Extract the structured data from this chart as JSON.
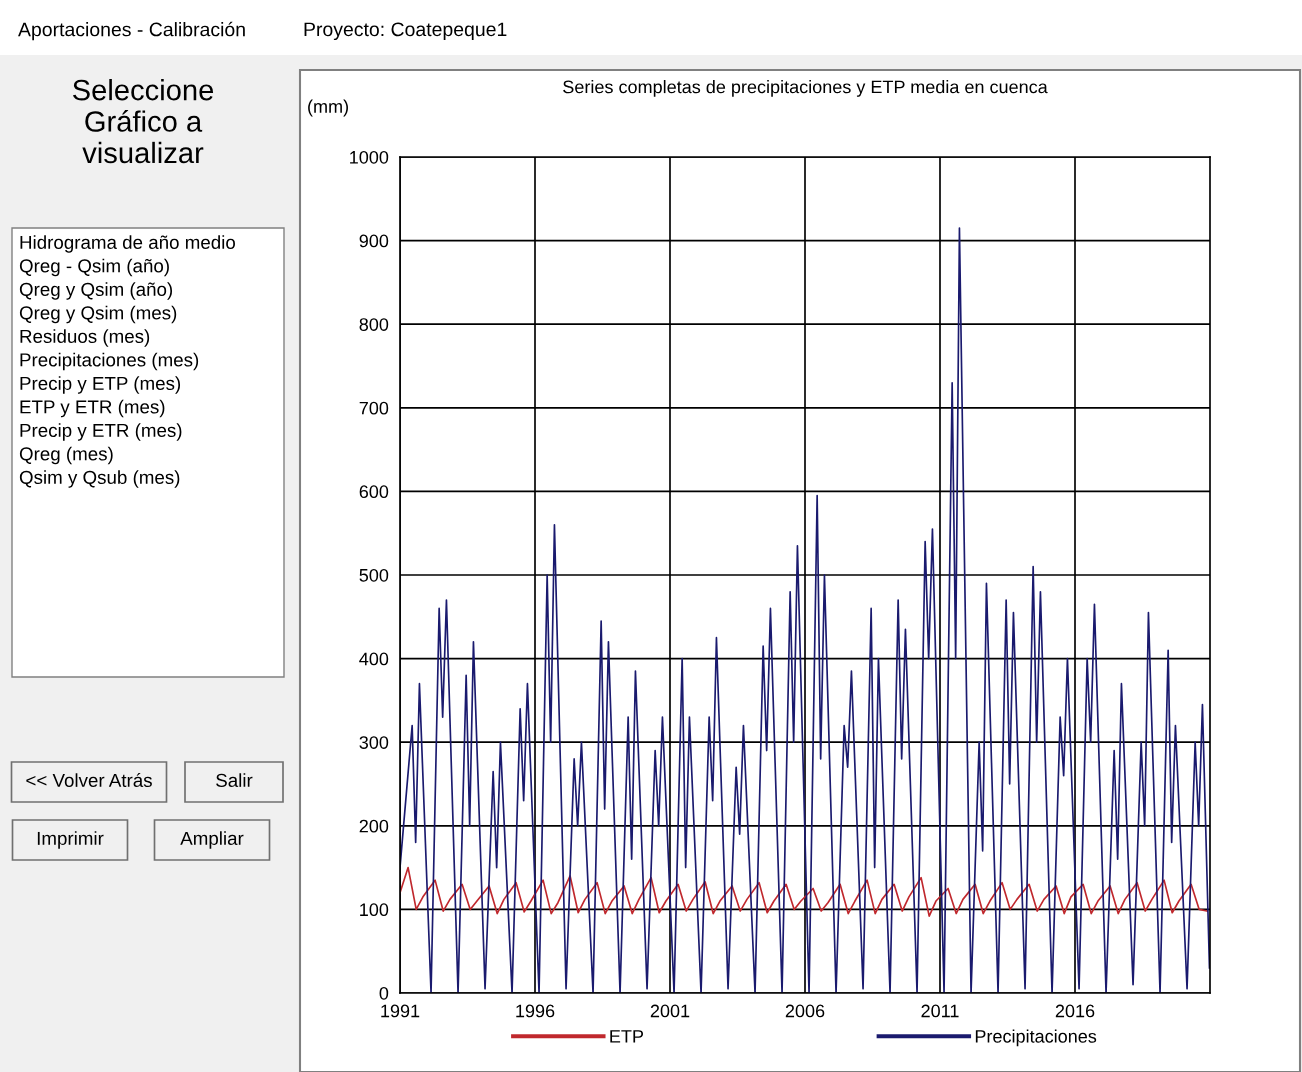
{
  "chart_data": {
    "type": "line",
    "title": "Series completas de precipitaciones y ETP media en cuenca",
    "ylabel": "(mm)",
    "annotations": [
      "Aportaciones - Calibración",
      "Proyecto: Coatepeque1",
      "Seleccione\nGráfico a\nvisualizar",
      "Hidrograma de año medio",
      "Qreg - Qsim (año)",
      "Qreg y Qsim (año)",
      "Qreg y Qsim (mes)",
      "Residuos (mes)",
      "Precipitaciones (mes)",
      "Precip y ETP (mes)",
      "ETP y ETR (mes)",
      "Precip y ETR (mes)",
      "Qreg (mes)",
      "Qsim y Qsub (mes)",
      "<< Volver Atrás",
      "Salir",
      "Imprimir",
      "Ampliar"
    ],
    "xlim": [
      1991,
      2021
    ],
    "xticks": [
      1991,
      1996,
      2001,
      2006,
      2011,
      2016
    ],
    "ylim": [
      0,
      1000
    ],
    "yticks": [
      0,
      100,
      200,
      300,
      400,
      500,
      600,
      700,
      800,
      900,
      1000
    ],
    "grid": true,
    "legend": "bottom",
    "series": [
      {
        "name": "ETP",
        "color": "#c0282d",
        "x": [
          1991.0,
          1991.3,
          1991.6,
          1991.85,
          1992.3,
          1992.6,
          1992.85,
          1993.3,
          1993.6,
          1993.85,
          1994.3,
          1994.6,
          1994.85,
          1995.3,
          1995.6,
          1995.85,
          1996.3,
          1996.6,
          1996.85,
          1997.3,
          1997.6,
          1997.85,
          1998.3,
          1998.6,
          1998.85,
          1999.3,
          1999.6,
          1999.85,
          2000.3,
          2000.6,
          2000.85,
          2001.3,
          2001.6,
          2001.85,
          2002.3,
          2002.6,
          2002.85,
          2003.3,
          2003.6,
          2003.85,
          2004.3,
          2004.6,
          2004.85,
          2005.3,
          2005.6,
          2005.85,
          2006.3,
          2006.6,
          2006.85,
          2007.3,
          2007.6,
          2007.85,
          2008.3,
          2008.6,
          2008.85,
          2009.3,
          2009.6,
          2009.85,
          2010.3,
          2010.6,
          2010.85,
          2011.3,
          2011.6,
          2011.85,
          2012.3,
          2012.6,
          2012.85,
          2013.3,
          2013.6,
          2013.85,
          2014.3,
          2014.6,
          2014.85,
          2015.3,
          2015.6,
          2015.85,
          2016.3,
          2016.6,
          2016.85,
          2017.3,
          2017.6,
          2017.85,
          2018.3,
          2018.6,
          2018.85,
          2019.3,
          2019.6,
          2019.85,
          2020.3,
          2020.6,
          2020.9
        ],
        "values": [
          120,
          150,
          100,
          115,
          135,
          98,
          112,
          130,
          100,
          110,
          128,
          95,
          112,
          132,
          97,
          110,
          135,
          95,
          108,
          140,
          96,
          112,
          132,
          95,
          110,
          128,
          95,
          112,
          138,
          96,
          110,
          130,
          98,
          112,
          133,
          95,
          110,
          128,
          98,
          112,
          132,
          96,
          110,
          130,
          100,
          110,
          125,
          98,
          108,
          130,
          95,
          110,
          135,
          95,
          112,
          130,
          98,
          115,
          138,
          92,
          110,
          125,
          95,
          112,
          130,
          95,
          110,
          132,
          100,
          112,
          130,
          98,
          112,
          128,
          95,
          115,
          130,
          95,
          110,
          128,
          95,
          112,
          132,
          98,
          112,
          135,
          96,
          110,
          130,
          100,
          98
        ]
      },
      {
        "name": "Precipitaciones",
        "color": "#1a1a6e",
        "x": [
          1991.0,
          1991.45,
          1991.58,
          1991.72,
          1992.15,
          1992.45,
          1992.58,
          1992.72,
          1993.15,
          1993.45,
          1993.58,
          1993.72,
          1994.15,
          1994.45,
          1994.58,
          1994.72,
          1995.15,
          1995.45,
          1995.58,
          1995.72,
          1996.15,
          1996.45,
          1996.58,
          1996.72,
          1997.15,
          1997.45,
          1997.58,
          1997.72,
          1998.15,
          1998.45,
          1998.58,
          1998.72,
          1999.15,
          1999.45,
          1999.58,
          1999.72,
          2000.15,
          2000.45,
          2000.58,
          2000.72,
          2001.15,
          2001.45,
          2001.58,
          2001.72,
          2002.15,
          2002.45,
          2002.58,
          2002.72,
          2003.15,
          2003.45,
          2003.58,
          2003.72,
          2004.15,
          2004.45,
          2004.58,
          2004.72,
          2005.15,
          2005.45,
          2005.58,
          2005.72,
          2006.15,
          2006.45,
          2006.58,
          2006.72,
          2007.15,
          2007.45,
          2007.58,
          2007.72,
          2008.15,
          2008.45,
          2008.58,
          2008.72,
          2009.15,
          2009.45,
          2009.58,
          2009.72,
          2010.15,
          2010.45,
          2010.58,
          2010.72,
          2011.15,
          2011.45,
          2011.58,
          2011.72,
          2012.15,
          2012.45,
          2012.58,
          2012.72,
          2013.15,
          2013.45,
          2013.58,
          2013.72,
          2014.15,
          2014.45,
          2014.58,
          2014.72,
          2015.15,
          2015.45,
          2015.58,
          2015.72,
          2016.15,
          2016.45,
          2016.58,
          2016.72,
          2017.15,
          2017.45,
          2017.58,
          2017.72,
          2018.15,
          2018.45,
          2018.58,
          2018.72,
          2019.15,
          2019.45,
          2019.58,
          2019.72,
          2020.15,
          2020.45,
          2020.58,
          2020.72,
          2020.98
        ],
        "values": [
          150,
          320,
          180,
          370,
          0,
          460,
          330,
          470,
          0,
          380,
          200,
          420,
          5,
          265,
          150,
          300,
          0,
          340,
          230,
          370,
          0,
          500,
          300,
          560,
          5,
          280,
          200,
          300,
          0,
          445,
          220,
          420,
          0,
          330,
          160,
          385,
          5,
          290,
          200,
          330,
          0,
          400,
          150,
          330,
          0,
          330,
          230,
          425,
          5,
          270,
          190,
          320,
          0,
          415,
          290,
          460,
          0,
          480,
          300,
          535,
          0,
          595,
          280,
          500,
          0,
          320,
          270,
          385,
          5,
          460,
          150,
          400,
          0,
          470,
          280,
          435,
          0,
          540,
          400,
          555,
          0,
          730,
          400,
          915,
          0,
          300,
          170,
          490,
          0,
          470,
          250,
          455,
          5,
          510,
          300,
          480,
          0,
          330,
          260,
          400,
          5,
          400,
          300,
          465,
          0,
          290,
          160,
          370,
          10,
          300,
          200,
          455,
          0,
          410,
          180,
          320,
          5,
          300,
          200,
          345,
          30
        ]
      }
    ]
  }
}
